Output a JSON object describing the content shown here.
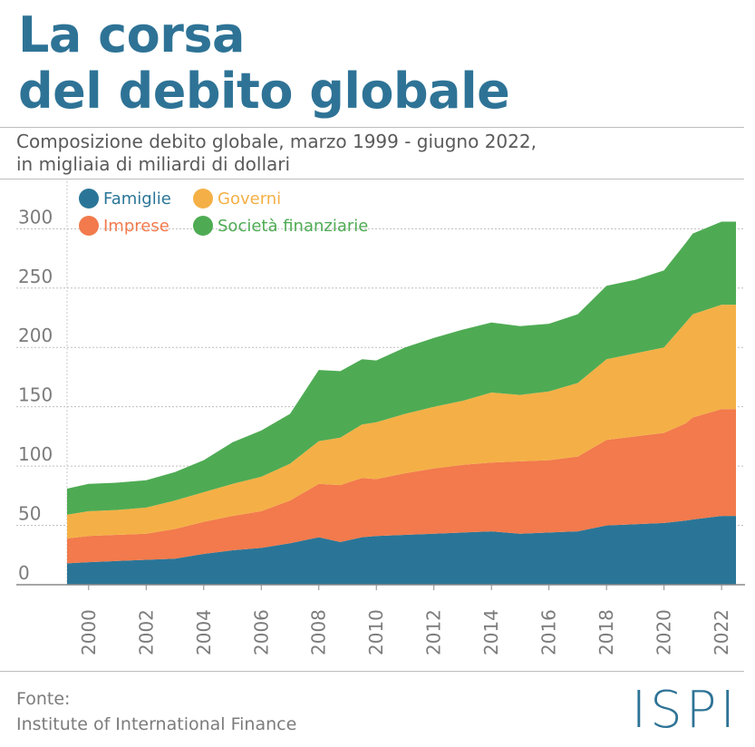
{
  "title": {
    "line1": "La corsa",
    "line2": "del debito globale"
  },
  "subtitle": {
    "line1": "Composizione debito globale, marzo 1999 - giugno 2022,",
    "line2": "in migliaia di miliardi di dollari"
  },
  "source": {
    "label": "Fonte:",
    "name": "Institute of International Finance"
  },
  "logo": "ISPI",
  "colors": {
    "famiglie": "#2a7597",
    "imprese": "#f27a4c",
    "governi": "#f4b046",
    "finanziarie": "#4eab53"
  },
  "chart_data": {
    "type": "area",
    "stacked": true,
    "title": "Composizione debito globale, marzo 1999 - giugno 2022",
    "ylabel": "in migliaia di miliardi di dollari",
    "xlim": [
      1999.25,
      2022.5
    ],
    "ylim": [
      0,
      340
    ],
    "yticks": [
      "0",
      "50",
      "100",
      "150",
      "200",
      "250",
      "300"
    ],
    "xticks": [
      "2000",
      "2002",
      "2004",
      "2006",
      "2008",
      "2010",
      "2012",
      "2014",
      "2016",
      "2018",
      "2020",
      "2022"
    ],
    "grid": true,
    "legend_position": "top-left",
    "x": [
      1999.25,
      2000,
      2001,
      2002,
      2003,
      2004,
      2005,
      2006,
      2007,
      2008,
      2008.75,
      2009.5,
      2010,
      2011,
      2012,
      2013,
      2014,
      2015,
      2016,
      2017,
      2018,
      2019,
      2020,
      2020.75,
      2021,
      2022,
      2022.5
    ],
    "series": [
      {
        "name": "Famiglie",
        "values": [
          18,
          19,
          20,
          21,
          22,
          26,
          29,
          31,
          35,
          40,
          36,
          40,
          41,
          42,
          43,
          44,
          45,
          43,
          44,
          45,
          50,
          51,
          52,
          54,
          55,
          58,
          58
        ]
      },
      {
        "name": "Imprese",
        "values": [
          21,
          22,
          22,
          22,
          25,
          27,
          29,
          31,
          36,
          45,
          48,
          50,
          48,
          52,
          55,
          57,
          58,
          61,
          61,
          63,
          72,
          74,
          76,
          82,
          86,
          90,
          90
        ]
      },
      {
        "name": "Governi",
        "values": [
          20,
          21,
          21,
          22,
          24,
          25,
          27,
          29,
          31,
          36,
          40,
          45,
          48,
          50,
          52,
          54,
          59,
          56,
          58,
          62,
          68,
          70,
          72,
          85,
          87,
          88,
          88
        ]
      },
      {
        "name": "Società finanziarie",
        "values": [
          22,
          23,
          23,
          23,
          24,
          27,
          35,
          39,
          42,
          60,
          56,
          55,
          52,
          56,
          58,
          60,
          59,
          58,
          57,
          58,
          62,
          62,
          65,
          67,
          68,
          70,
          70
        ]
      }
    ]
  }
}
